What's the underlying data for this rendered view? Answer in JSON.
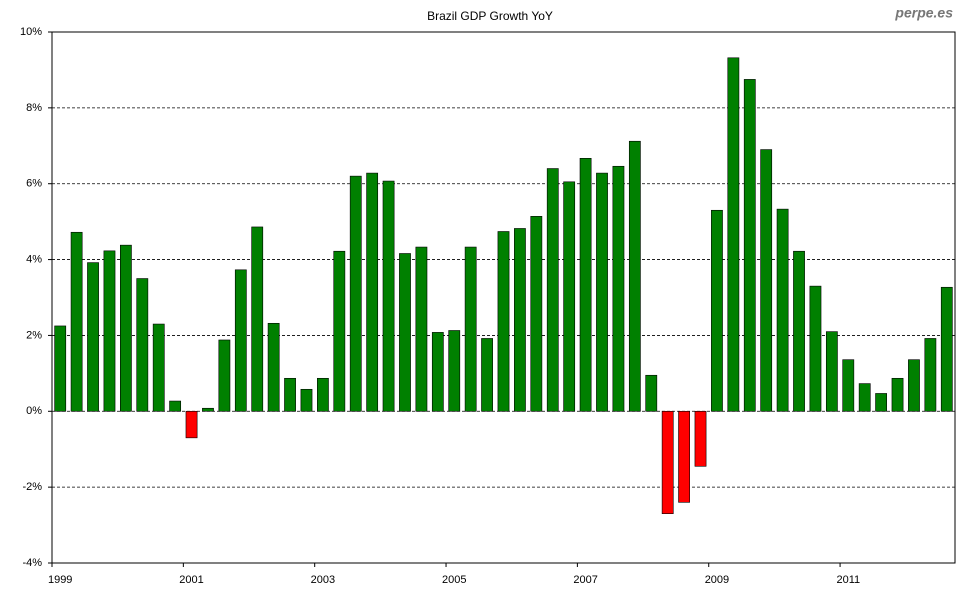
{
  "chart_data": {
    "type": "bar",
    "title": "Brazil GDP Growth YoY",
    "watermark": "perpe.es",
    "categories": [
      "1999",
      null,
      null,
      null,
      null,
      null,
      null,
      null,
      "2001",
      null,
      null,
      null,
      null,
      null,
      null,
      null,
      "2003",
      null,
      null,
      null,
      null,
      null,
      null,
      null,
      "2005",
      null,
      null,
      null,
      null,
      null,
      null,
      null,
      "2007",
      null,
      null,
      null,
      null,
      null,
      null,
      null,
      "2009",
      null,
      null,
      null,
      null,
      null,
      null,
      null,
      "2011",
      null,
      null,
      null,
      null,
      null,
      null
    ],
    "values": [
      2.25,
      4.72,
      3.92,
      4.23,
      4.38,
      3.5,
      2.3,
      0.27,
      -0.7,
      0.08,
      1.88,
      3.73,
      4.86,
      2.32,
      0.87,
      0.58,
      0.87,
      4.22,
      6.2,
      6.28,
      6.07,
      4.16,
      4.33,
      2.08,
      2.13,
      4.33,
      1.92,
      4.74,
      4.82,
      5.14,
      6.4,
      6.05,
      6.67,
      6.28,
      6.46,
      7.12,
      0.95,
      -2.7,
      -2.4,
      -1.45,
      5.3,
      9.32,
      8.75,
      6.9,
      5.33,
      4.22,
      3.3,
      2.1,
      1.36,
      0.73,
      0.47,
      0.87,
      1.36,
      1.92,
      3.27
    ],
    "positive_color": "#008000",
    "negative_color": "#ff0000",
    "ylim": [
      -4,
      10
    ],
    "yticks": [
      {
        "value": -4,
        "label": "-4%"
      },
      {
        "value": -2,
        "label": "-2%"
      },
      {
        "value": 0,
        "label": "0%"
      },
      {
        "value": 2,
        "label": "2%"
      },
      {
        "value": 4,
        "label": "4%"
      },
      {
        "value": 6,
        "label": "6%"
      },
      {
        "value": 8,
        "label": "8%"
      },
      {
        "value": 10,
        "label": "10%"
      }
    ],
    "grid": true
  }
}
